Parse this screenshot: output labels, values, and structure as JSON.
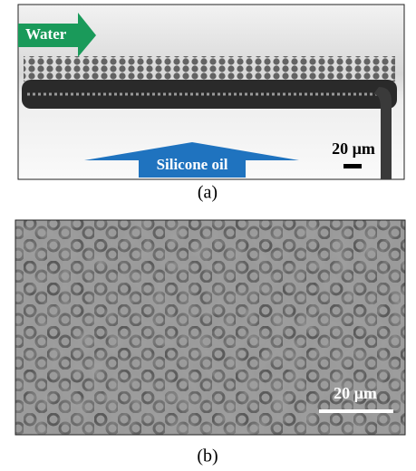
{
  "panel_a": {
    "water_label": "Water",
    "oil_label": "Silicone oil",
    "scale_bar": "20 µm",
    "label": "(a)"
  },
  "panel_b": {
    "scale_bar": "20 µm",
    "label": "(b)"
  }
}
